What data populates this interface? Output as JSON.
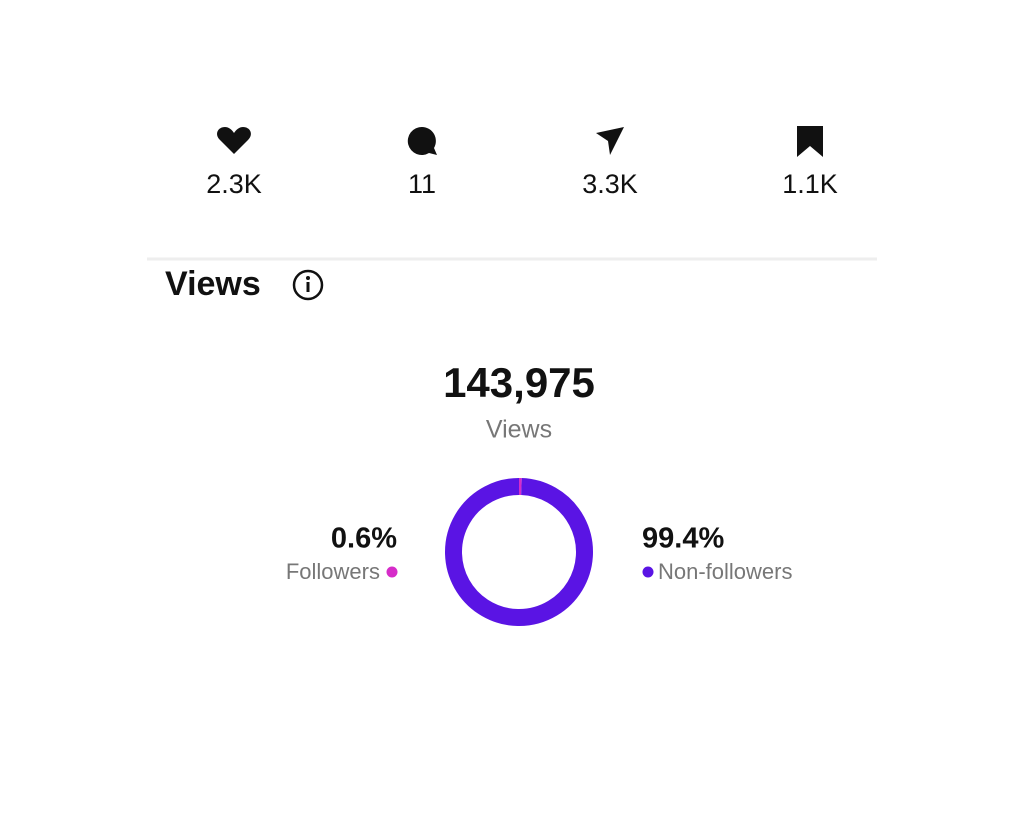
{
  "stats": [
    "2.3K",
    "11",
    "3.3K",
    "1.1K"
  ],
  "views": {
    "title": "Views",
    "total": "143,975",
    "total_label": "Views",
    "breakdown": {
      "type": "donut",
      "categories": [
        "Followers",
        "Non-followers"
      ],
      "values": [
        0.6,
        99.4
      ],
      "value_labels": [
        "0.6%",
        "99.4%"
      ],
      "colors": [
        "#d62cc9",
        "#5a14e4"
      ]
    }
  }
}
